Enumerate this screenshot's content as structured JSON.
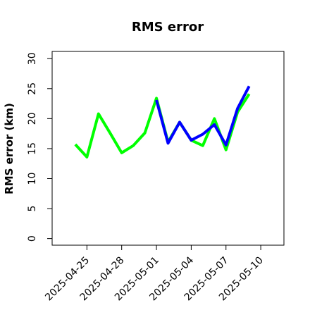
{
  "chart_data": {
    "type": "line",
    "title": "RMS error",
    "y_label": "RMS error (km)",
    "series": [
      {
        "color": "#00ff00",
        "x": [
          "2025-04-24",
          "2025-04-25",
          "2025-04-26",
          "2025-04-27",
          "2025-04-28",
          "2025-04-29",
          "2025-04-30",
          "2025-05-01",
          "2025-05-02",
          "2025-05-03",
          "2025-05-04",
          "2025-05-05",
          "2025-05-06",
          "2025-05-07",
          "2025-05-08",
          "2025-05-09"
        ],
        "values": [
          15.7,
          13.6,
          20.8,
          17.6,
          14.3,
          15.5,
          17.6,
          23.4,
          16.1,
          19.4,
          16.4,
          15.5,
          20.0,
          14.8,
          21.1,
          24.1
        ]
      },
      {
        "color": "#0000ff",
        "x": [
          "2025-05-01",
          "2025-05-02",
          "2025-05-03",
          "2025-05-04",
          "2025-05-05",
          "2025-05-06",
          "2025-05-07",
          "2025-05-08",
          "2025-05-09"
        ],
        "values": [
          23.1,
          15.9,
          19.4,
          16.4,
          17.4,
          19.0,
          15.6,
          21.7,
          25.4
        ]
      }
    ],
    "xlim": [
      "2025-04-22",
      "2025-05-12"
    ],
    "xticks": [
      "2025-04-25",
      "2025-04-28",
      "2025-05-01",
      "2025-05-04",
      "2025-05-07",
      "2025-05-10"
    ],
    "xtick_colors": [
      "#000000",
      "#000000",
      "#228b22",
      "#000000",
      "#000000",
      "#000000"
    ],
    "ylim": [
      -1.1,
      31.2
    ],
    "yticks": [
      0,
      5,
      10,
      15,
      20,
      25,
      30
    ]
  }
}
